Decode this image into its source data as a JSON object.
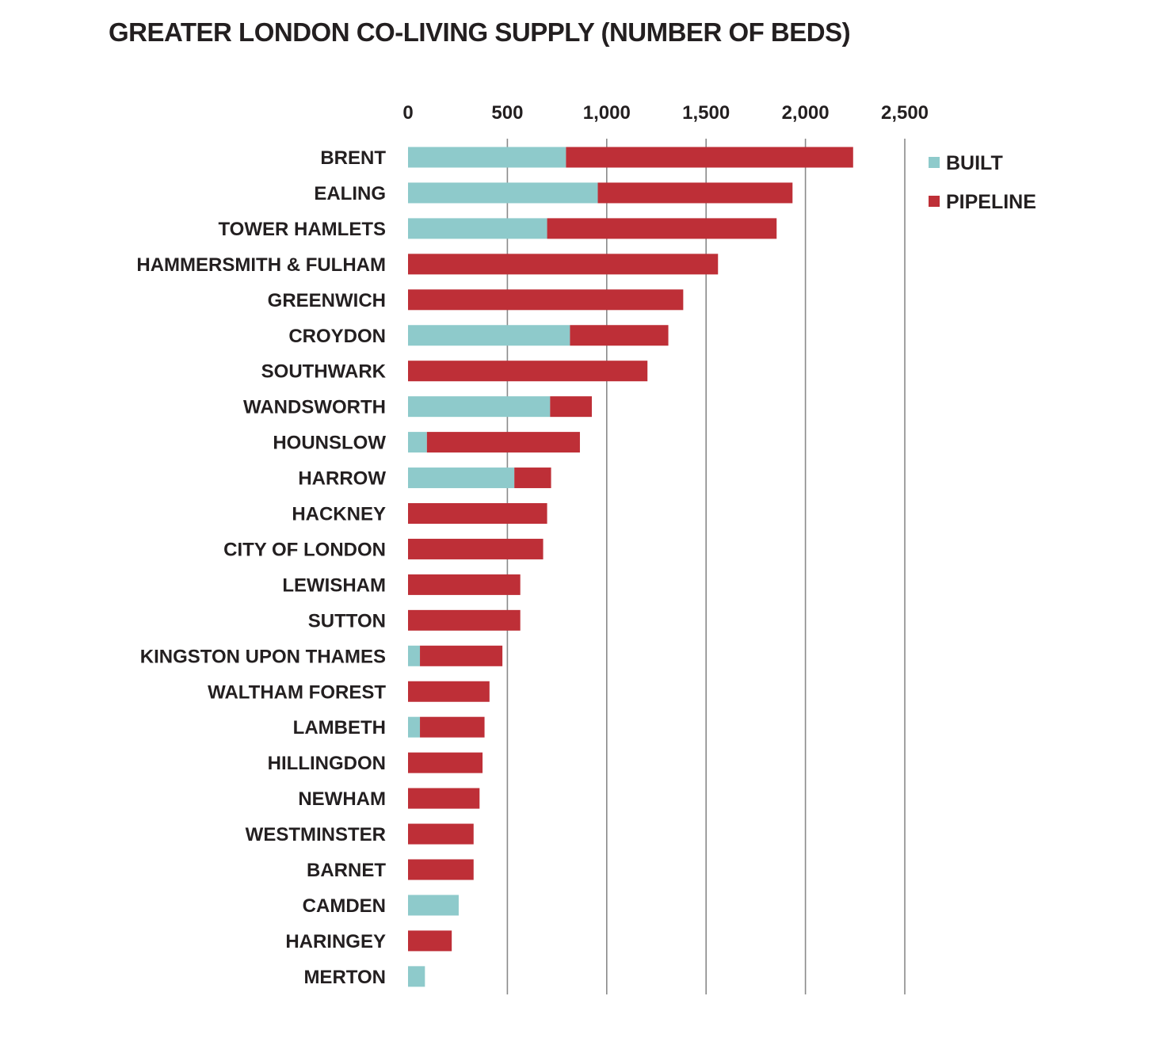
{
  "chart_data": {
    "type": "bar",
    "orientation": "horizontal",
    "stacked": true,
    "title": "GREATER LONDON CO-LIVING SUPPLY (NUMBER OF BEDS)",
    "xlabel": "",
    "ylabel": "",
    "xlim": [
      0,
      2500
    ],
    "xticks": [
      0,
      500,
      1000,
      1500,
      2000,
      2500
    ],
    "xtick_labels": [
      "0",
      "500",
      "1,000",
      "1,500",
      "2,000",
      "2,500"
    ],
    "x_axis_position": "top",
    "grid": true,
    "legend_position": "top-right",
    "categories": [
      "BRENT",
      "EALING",
      "TOWER HAMLETS",
      "HAMMERSMITH & FULHAM",
      "GREENWICH",
      "CROYDON",
      "SOUTHWARK",
      "WANDSWORTH",
      "HOUNSLOW",
      "HARROW",
      "HACKNEY",
      "CITY OF LONDON",
      "LEWISHAM",
      "SUTTON",
      "KINGSTON UPON THAMES",
      "WALTHAM FOREST",
      "LAMBETH",
      "HILLINGDON",
      "NEWHAM",
      "WESTMINSTER",
      "BARNET",
      "CAMDEN",
      "HARINGEY",
      "MERTON"
    ],
    "series": [
      {
        "name": "BUILT",
        "color": "#8ecacb",
        "values": [
          795,
          955,
          700,
          0,
          0,
          815,
          0,
          715,
          95,
          535,
          0,
          0,
          0,
          0,
          60,
          0,
          60,
          0,
          0,
          0,
          0,
          255,
          0,
          85
        ]
      },
      {
        "name": "PIPELINE",
        "color": "#be2f37",
        "values": [
          1445,
          980,
          1155,
          1560,
          1385,
          495,
          1205,
          210,
          770,
          185,
          700,
          680,
          565,
          565,
          415,
          410,
          325,
          375,
          360,
          330,
          330,
          0,
          220,
          0
        ]
      }
    ]
  }
}
